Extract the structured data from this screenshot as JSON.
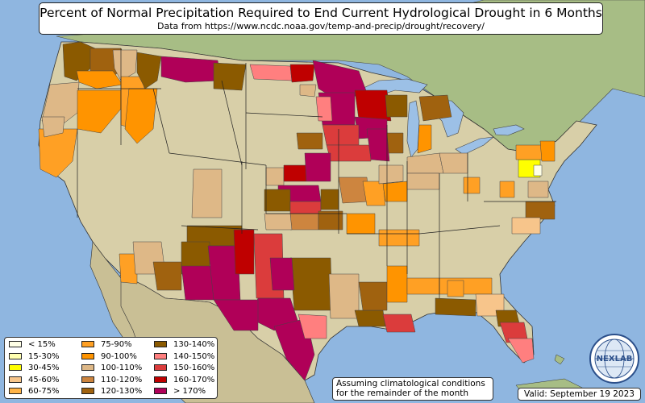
{
  "title": "Percent of Normal Precipitation Required to End Current Hydrological Drought in 6 Months",
  "subtitle": "Data from https://www.ncdc.noaa.gov/temp-and-precip/drought/recovery/",
  "note_line1": "Assuming climatological conditions",
  "note_line2": "for the remainder of the month",
  "valid": "Valid: September 19 2023",
  "logo": {
    "text": "NEXLAB",
    "icon": "globe-logo-icon"
  },
  "colors": {
    "ocean": "#8fb6e0",
    "lakes": "#9cc0e6"
  },
  "legend": [
    {
      "label": "< 15%",
      "color": "#ffffe6"
    },
    {
      "label": "15-30%",
      "color": "#ffffb0"
    },
    {
      "label": "30-45%",
      "color": "#ffff00"
    },
    {
      "label": "45-60%",
      "color": "#f7c58b"
    },
    {
      "label": "60-75%",
      "color": "#ffb347"
    },
    {
      "label": "75-90%",
      "color": "#ffa024"
    },
    {
      "label": "90-100%",
      "color": "#ff9400"
    },
    {
      "label": "100-110%",
      "color": "#deb887"
    },
    {
      "label": "110-120%",
      "color": "#cd853f"
    },
    {
      "label": "120-130%",
      "color": "#a0620f"
    },
    {
      "label": "130-140%",
      "color": "#8b5a00"
    },
    {
      "label": "140-150%",
      "color": "#ff7f7f"
    },
    {
      "label": "150-160%",
      "color": "#db3c3c"
    },
    {
      "label": "160-170%",
      "color": "#bf0000"
    },
    {
      "label": "> 170%",
      "color": "#b00058"
    }
  ]
}
